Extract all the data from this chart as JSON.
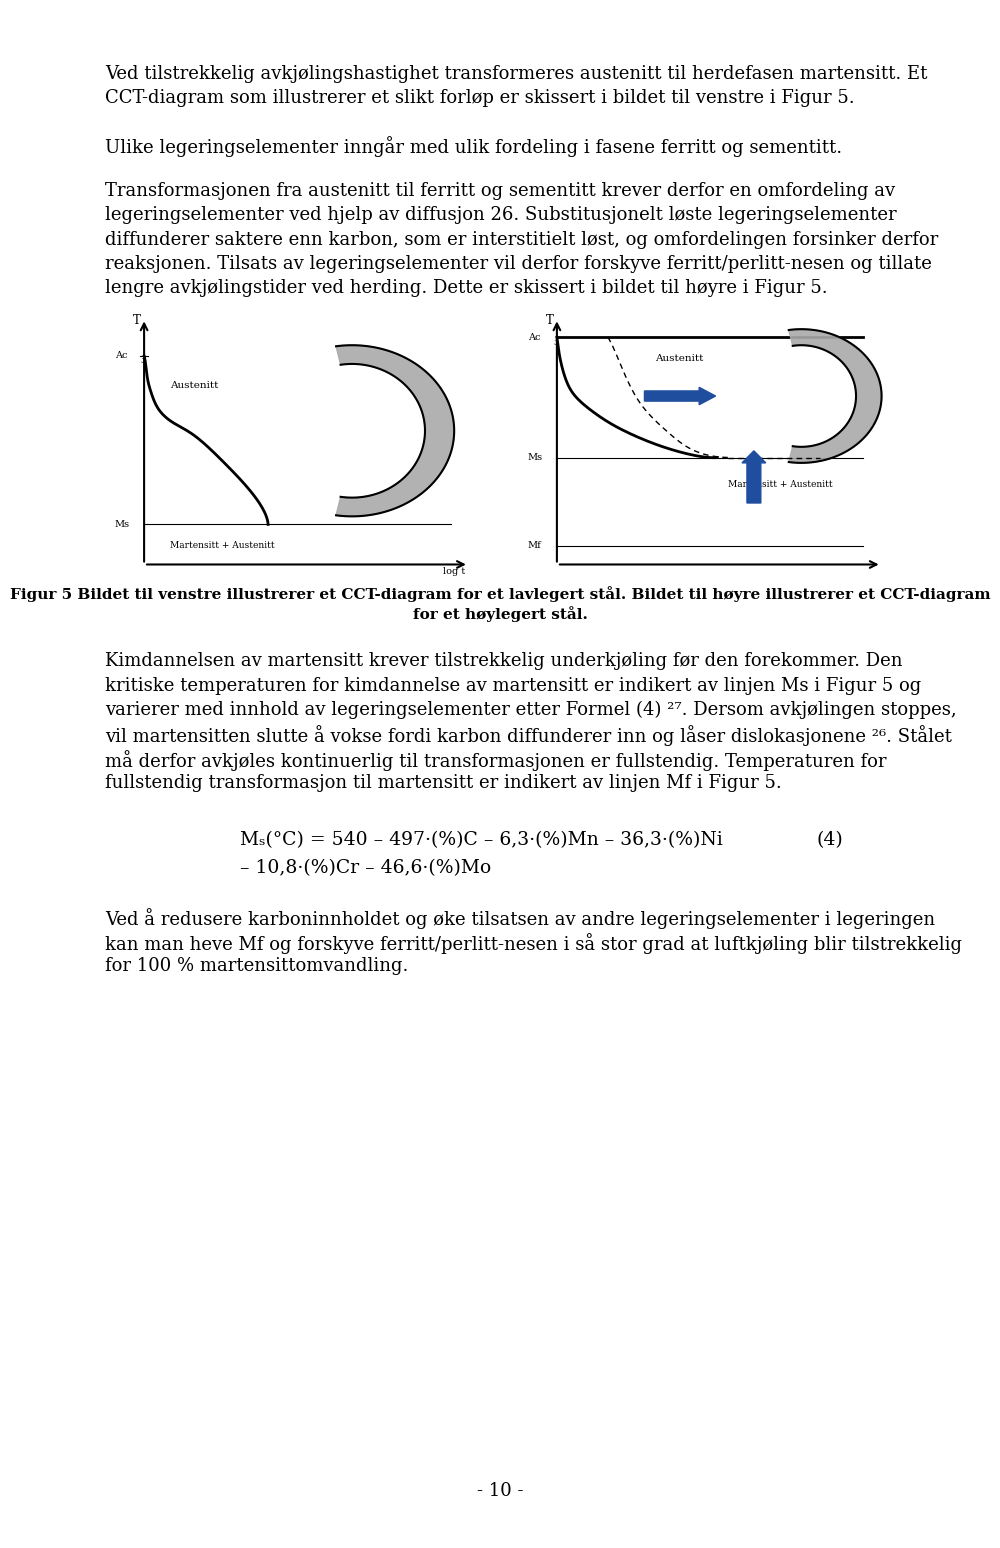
{
  "background_color": "#ffffff",
  "text_color": "#000000",
  "page_width": 9.6,
  "page_height": 15.28,
  "top_paragraphs": [
    [
      "Ved tilstrekkelig avkjølingshastighet transformeres austenitt til herdefasen martensitt. Et",
      "CCT-diagram som illustrerer et slikt forløp er skissert i bildet til venstre i Figur 5."
    ],
    [
      "Ulike legeringselementer inngår med ulik fordeling i fasene ferritt og sementitt."
    ],
    [
      "Transformasjonen fra austenitt til ferritt og sementitt krever derfor en omfordeling av",
      "legeringselementer ved hjelp av diffusjon 26. Substitusjonelt løste legeringselementer",
      "diffunderer saktere enn karbon, som er interstitielt løst, og omfordelingen forsinker derfor",
      "reaksjonen. Tilsats av legeringselementer vil derfor forskyve ferritt/perlitt-nesen og tillate",
      "lengre avkjølingstider ved herding. Dette er skissert i bildet til høyre i Figur 5."
    ]
  ],
  "bottom_paragraphs": [
    [
      "Kimdannelsen av martensitt krever tilstrekkelig underkjøling før den forekommer. Den",
      "kritiske temperaturen for kimdannelse av martensitt er indikert av linjen Ms i Figur 5 og",
      "varierer med innhold av legeringselementer etter Formel (4) 27. Dersom avkjølingen stoppes,",
      "vil martensitten slutte å vokse fordi karbon diffunderer inn og låser dislokasjonene 26. Stålet",
      "må derfor avkjøles kontinuerlig til transformasjonen er fullstendig. Temperaturen for",
      "fullstendig transformasjon til martensitt er indikert av linjen Mf i Figur 5."
    ]
  ],
  "closing_paragraph": [
    "Ved å redusere karboninnholdet og øke tilsatsen av andre legeringselementer i legeringen",
    "kan man heve Mf og forskyve ferritt/perlitt-nesen i så stor grad at luftkjøling blir tilstrekkelig",
    "for 100 % martensittomvandling."
  ],
  "caption_line1": "Figur 5 Bildet til venstre illustrerer et CCT-diagram for et lavlegert stål. Bildet til høyre illustrerer et CCT-diagram",
  "caption_line2": "for et høylegert stål.",
  "footer": "- 10 -",
  "diagram_gray": "#aaaaaa",
  "arrow_color": "#1f4e9e",
  "fs_body": 13.0,
  "fs_caption": 11.0,
  "fs_formula": 13.5
}
